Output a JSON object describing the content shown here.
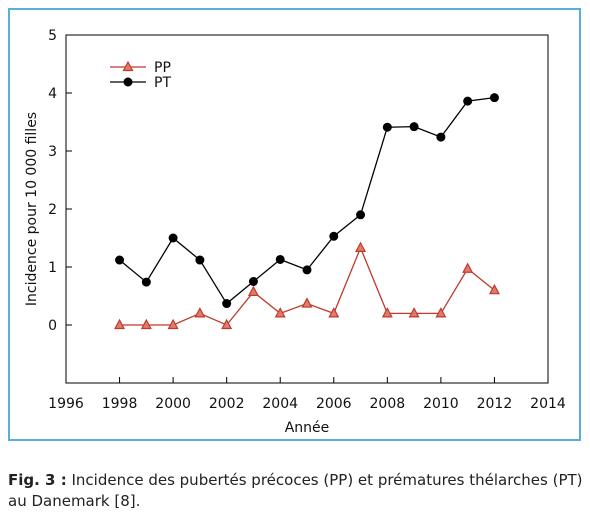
{
  "chart_data": {
    "type": "line",
    "xlabel": "Année",
    "ylabel": "Incidence pour 10 000 filles",
    "xlim": [
      1996,
      2014
    ],
    "ylim": [
      -1,
      5
    ],
    "x_ticks": [
      1996,
      1998,
      2000,
      2002,
      2004,
      2006,
      2008,
      2010,
      2012,
      2014
    ],
    "y_ticks": [
      0,
      1,
      2,
      3,
      4,
      5
    ],
    "grid": false,
    "legend_position": "top-left",
    "series": [
      {
        "name": "PP",
        "marker": "triangle",
        "line_color": "#c0392b",
        "marker_fill": "#e07a6a",
        "x": [
          1998,
          1999,
          2000,
          2001,
          2002,
          2003,
          2004,
          2005,
          2006,
          2007,
          2008,
          2009,
          2010,
          2011,
          2012
        ],
        "y": [
          0,
          0,
          0,
          0.2,
          0,
          0.57,
          0.2,
          0.37,
          0.2,
          1.33,
          0.2,
          0.2,
          0.2,
          0.97,
          0.6
        ]
      },
      {
        "name": "PT",
        "marker": "circle",
        "line_color": "#000000",
        "marker_fill": "#000000",
        "x": [
          1998,
          1999,
          2000,
          2001,
          2002,
          2003,
          2004,
          2005,
          2006,
          2007,
          2008,
          2009,
          2010,
          2011,
          2012
        ],
        "y": [
          1.12,
          0.74,
          1.5,
          1.12,
          0.37,
          0.75,
          1.13,
          0.95,
          1.53,
          1.9,
          3.41,
          3.42,
          3.24,
          3.86,
          3.92
        ]
      }
    ]
  },
  "caption": {
    "label": "Fig. 3 :",
    "text": " Incidence des pubertés précoces (PP) et prématures thélarches (PT) au Danemark [8]."
  }
}
